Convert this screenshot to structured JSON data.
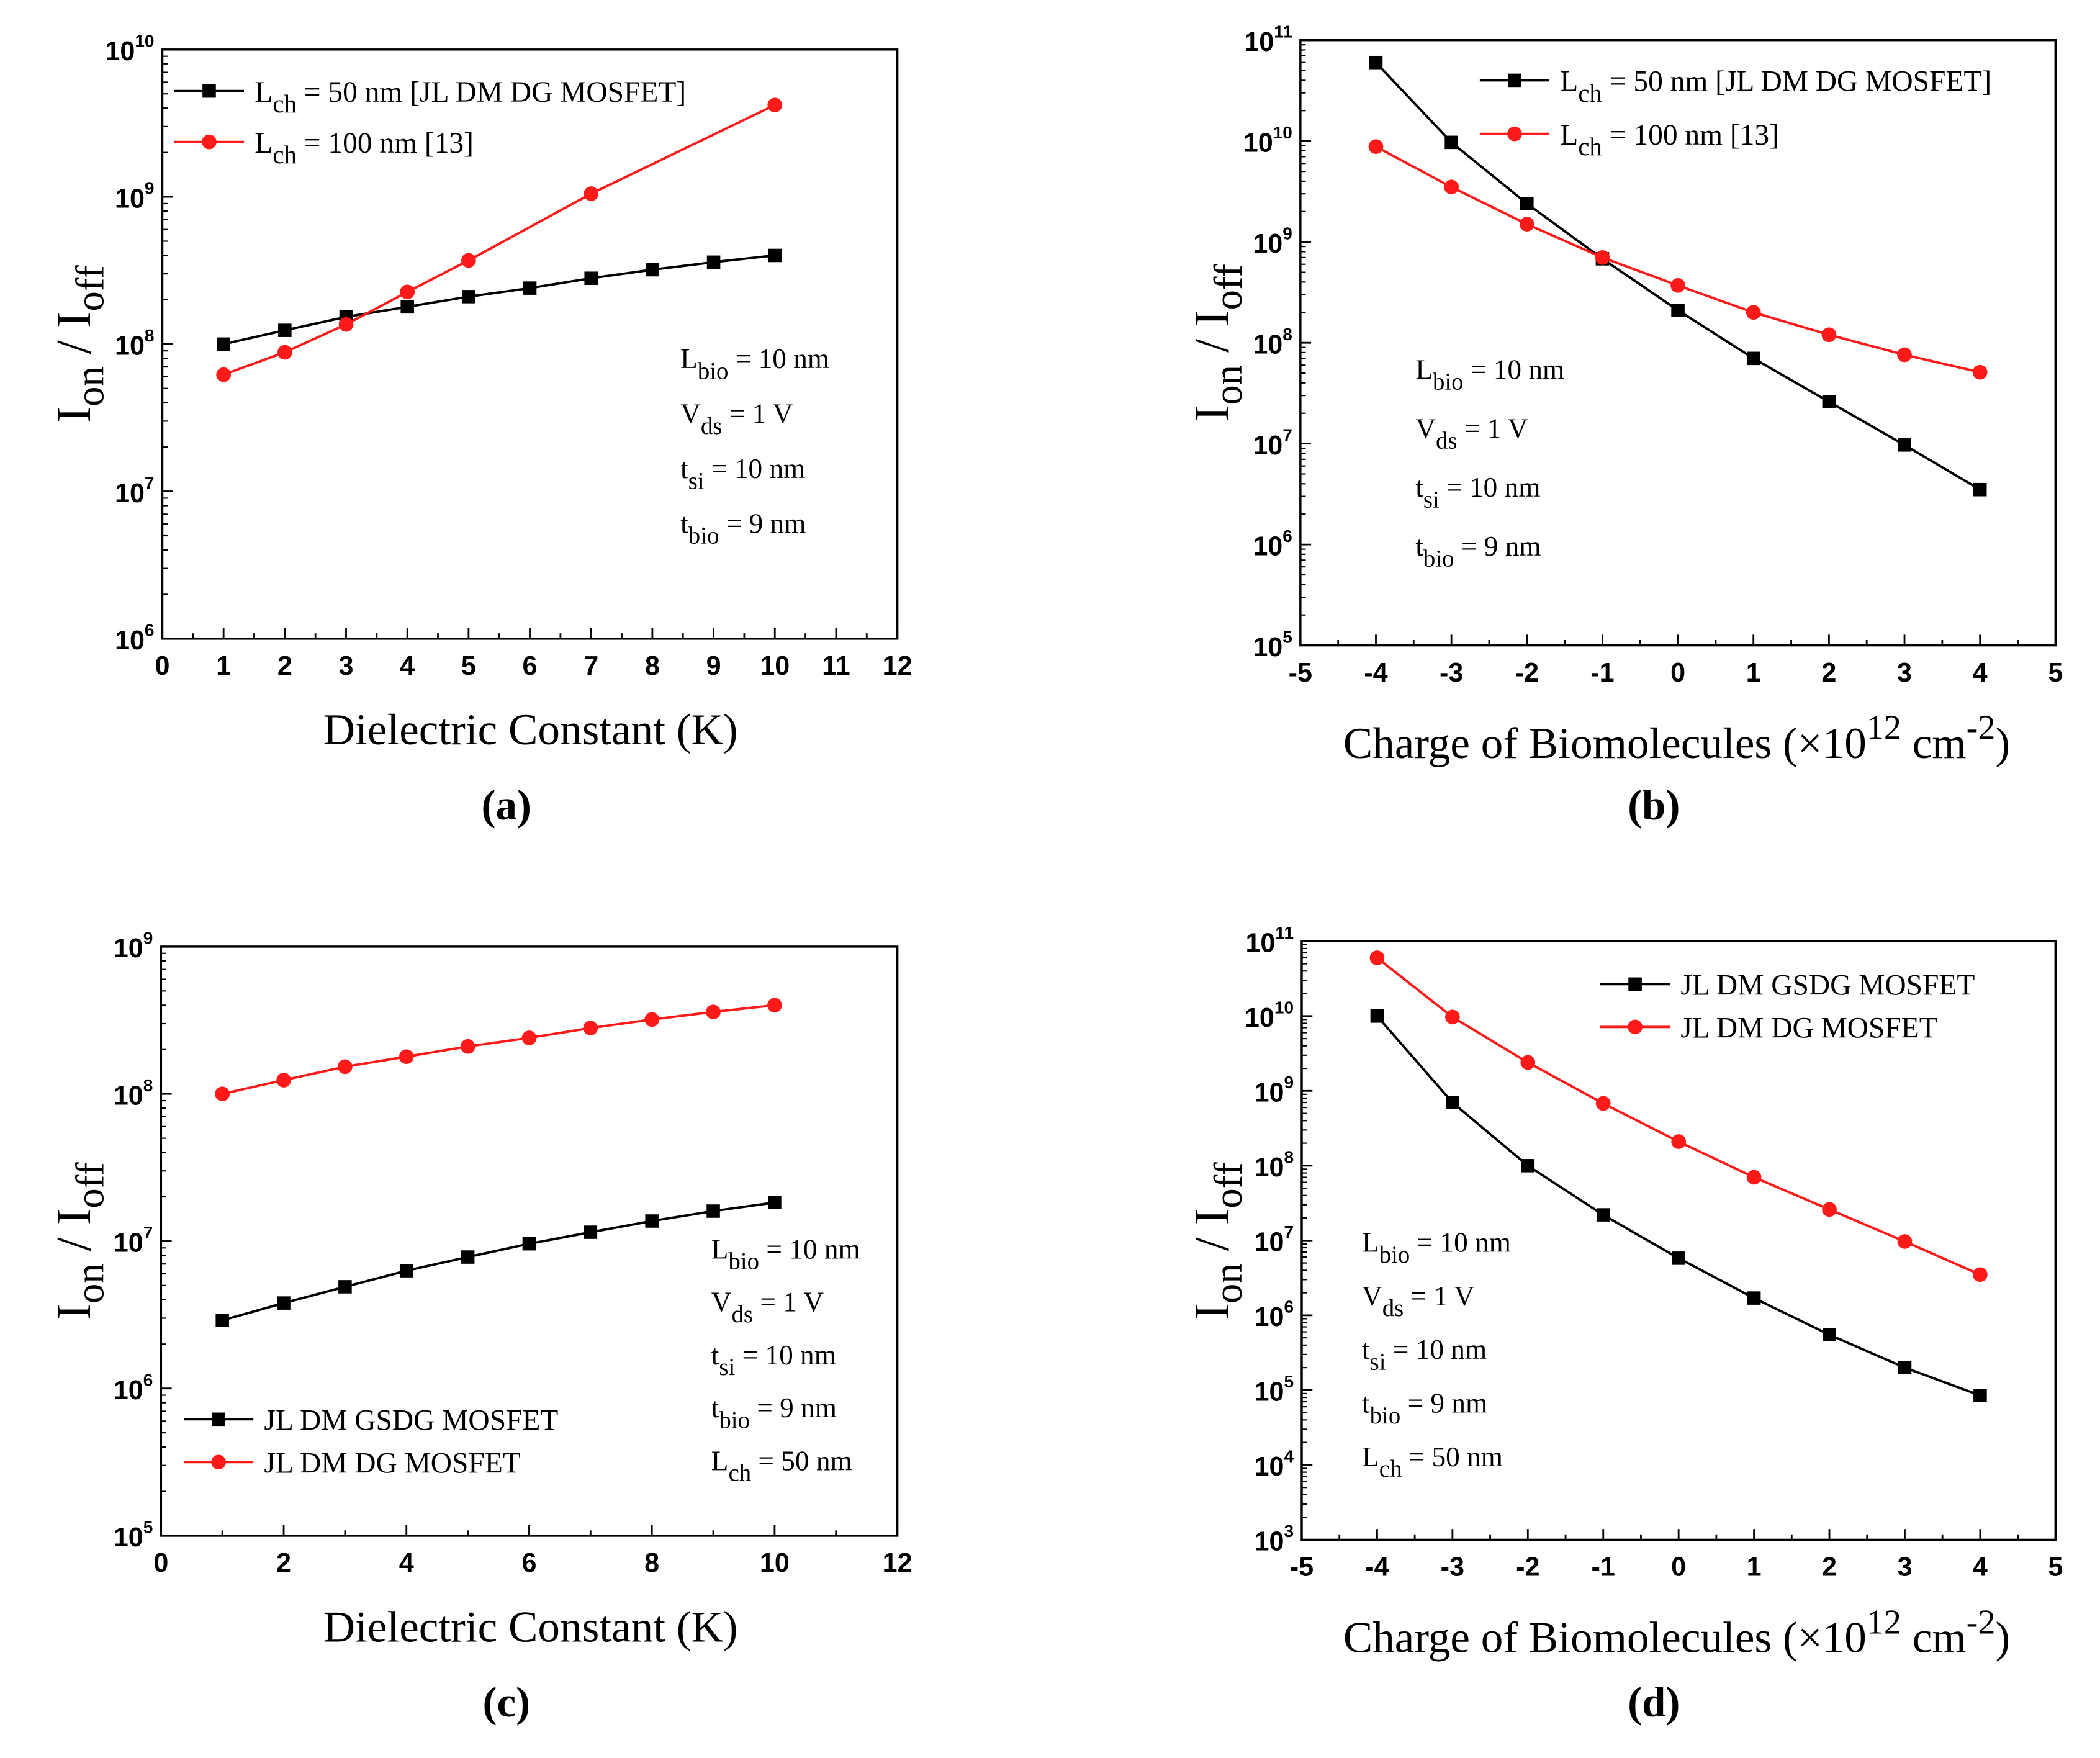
{
  "colors": {
    "black_series": "#000000",
    "red_series": "#ff1a1a",
    "axis": "#000000"
  },
  "chart_data": [
    {
      "panel_label": "(a)",
      "type": "line",
      "yscale": "log",
      "xlim": [
        0,
        12
      ],
      "ylim": [
        1000000.0,
        10000000000.0
      ],
      "xticks": [
        0,
        1,
        2,
        3,
        4,
        5,
        6,
        7,
        8,
        9,
        10,
        11,
        12
      ],
      "yticks_exp": [
        6,
        7,
        8,
        9,
        10
      ],
      "xlabel": [
        {
          "t": "Dielectric Constant (K)"
        }
      ],
      "ylabel": {
        "main1": "I",
        "sub1": "on",
        "mid": " / I",
        "sub2": "off"
      },
      "legend_placement": "top-left",
      "series": [
        {
          "name": {
            "main": "L",
            "sub": "ch",
            "rest": " = 50 nm [JL DM DG MOSFET]"
          },
          "color": "#000000",
          "marker": "square",
          "x": [
            1,
            2,
            3,
            4,
            5,
            6,
            7,
            8,
            9,
            10
          ],
          "y": [
            100000000.0,
            124000000.0,
            153000000.0,
            179000000.0,
            210000000.0,
            240000000.0,
            280000000.0,
            320000000.0,
            360000000.0,
            400000000.0
          ]
        },
        {
          "name": {
            "main": "L",
            "sub": "ch",
            "rest": " = 100 nm [13]"
          },
          "color": "#ff1a1a",
          "marker": "circle",
          "x": [
            1,
            2,
            3,
            4,
            5,
            7,
            10
          ],
          "y": [
            62000000.0,
            88000000.0,
            136000000.0,
            226000000.0,
            370000000.0,
            1050000000.0,
            4200000000.0
          ]
        }
      ],
      "annotations": [
        {
          "main": "L",
          "sub": "bio",
          "rest": " = 10 nm"
        },
        {
          "main": "V",
          "sub": "ds",
          "rest": " = 1 V"
        },
        {
          "main": "t",
          "sub": "si",
          "rest": " = 10 nm"
        },
        {
          "main": "t",
          "sub": "bio",
          "rest": " = 9 nm"
        }
      ]
    },
    {
      "panel_label": "(b)",
      "type": "line",
      "yscale": "log",
      "xlim": [
        -5,
        5
      ],
      "ylim": [
        100000.0,
        100000000000.0
      ],
      "xticks": [
        -5,
        -4,
        -3,
        -2,
        -1,
        0,
        1,
        2,
        3,
        4,
        5
      ],
      "yticks_exp": [
        5,
        6,
        7,
        8,
        9,
        10,
        11
      ],
      "xlabel": [
        {
          "t": "Charge of Biomolecules (×10"
        },
        {
          "t": "12",
          "sup": true
        },
        {
          "t": " cm"
        },
        {
          "t": "-2",
          "sup": true
        },
        {
          "t": ")"
        }
      ],
      "ylabel": {
        "main1": "I",
        "sub1": "on",
        "mid": " / I",
        "sub2": "off"
      },
      "legend_placement": "top-right",
      "series": [
        {
          "name": {
            "main": "L",
            "sub": "ch",
            "rest": " = 50 nm [JL DM DG MOSFET]"
          },
          "color": "#000000",
          "marker": "square",
          "x": [
            -4,
            -3,
            -2,
            -1,
            0,
            1,
            2,
            3,
            4
          ],
          "y": [
            60000000000.0,
            9700000000.0,
            2400000000.0,
            680000000.0,
            210000000.0,
            70000000.0,
            26000000.0,
            9700000.0,
            3500000.0
          ]
        },
        {
          "name": {
            "main": "L",
            "sub": "ch",
            "rest": " = 100 nm [13]"
          },
          "color": "#ff1a1a",
          "marker": "circle",
          "x": [
            -4,
            -3,
            -2,
            -1,
            0,
            1,
            2,
            3,
            4
          ],
          "y": [
            8800000000.0,
            3500000000.0,
            1500000000.0,
            700000000.0,
            370000000.0,
            200000000.0,
            120000000.0,
            76000000.0,
            51000000.0
          ]
        }
      ],
      "annotations": [
        {
          "main": "L",
          "sub": "bio",
          "rest": " = 10 nm"
        },
        {
          "main": "V",
          "sub": "ds",
          "rest": " = 1 V"
        },
        {
          "main": "t",
          "sub": "si",
          "rest": " = 10 nm"
        },
        {
          "main": "t",
          "sub": "bio",
          "rest": " = 9 nm"
        }
      ]
    },
    {
      "panel_label": "(c)",
      "type": "line",
      "yscale": "log",
      "xlim": [
        0,
        12
      ],
      "ylim": [
        100000.0,
        1000000000.0
      ],
      "xticks": [
        0,
        2,
        4,
        6,
        8,
        10,
        12
      ],
      "yticks_exp": [
        5,
        6,
        7,
        8,
        9
      ],
      "xlabel": [
        {
          "t": "Dielectric Constant (K)"
        }
      ],
      "ylabel": {
        "main1": "I",
        "sub1": "on",
        "mid": " / I",
        "sub2": "off"
      },
      "legend_placement": "bottom-left",
      "series": [
        {
          "name": {
            "main": "",
            "sub": "",
            "rest": "JL DM GSDG MOSFET"
          },
          "color": "#000000",
          "marker": "square",
          "x": [
            1,
            2,
            3,
            4,
            5,
            6,
            7,
            8,
            9,
            10
          ],
          "y": [
            2900000.0,
            3800000.0,
            4900000.0,
            6300000.0,
            7800000.0,
            9600000.0,
            11500000.0,
            13700000.0,
            16000000.0,
            18300000.0
          ]
        },
        {
          "name": {
            "main": "",
            "sub": "",
            "rest": "JL DM DG MOSFET"
          },
          "color": "#ff1a1a",
          "marker": "circle",
          "x": [
            1,
            2,
            3,
            4,
            5,
            6,
            7,
            8,
            9,
            10
          ],
          "y": [
            100000000.0,
            124000000.0,
            153000000.0,
            179000000.0,
            210000000.0,
            240000000.0,
            280000000.0,
            320000000.0,
            360000000.0,
            400000000.0
          ]
        }
      ],
      "annotations": [
        {
          "main": "L",
          "sub": "bio",
          "rest": " = 10 nm"
        },
        {
          "main": "V",
          "sub": "ds",
          "rest": " = 1 V"
        },
        {
          "main": "t",
          "sub": "si",
          "rest": " = 10 nm"
        },
        {
          "main": "t",
          "sub": "bio",
          "rest": " = 9 nm"
        },
        {
          "main": "L",
          "sub": "ch",
          "rest": " = 50 nm"
        }
      ]
    },
    {
      "panel_label": "(d)",
      "type": "line",
      "yscale": "log",
      "xlim": [
        -5,
        5
      ],
      "ylim": [
        1000.0,
        100000000000.0
      ],
      "xticks": [
        -5,
        -4,
        -3,
        -2,
        -1,
        0,
        1,
        2,
        3,
        4,
        5
      ],
      "yticks_exp": [
        3,
        4,
        5,
        6,
        7,
        8,
        9,
        10,
        11
      ],
      "xlabel": [
        {
          "t": "Charge of Biomolecules (×10"
        },
        {
          "t": "12",
          "sup": true
        },
        {
          "t": " cm"
        },
        {
          "t": "-2",
          "sup": true
        },
        {
          "t": ")"
        }
      ],
      "ylabel": {
        "main1": "I",
        "sub1": "on",
        "mid": " / I",
        "sub2": "off"
      },
      "legend_placement": "top-right",
      "series": [
        {
          "name": {
            "main": "",
            "sub": "",
            "rest": "JL DM GSDG MOSFET"
          },
          "color": "#000000",
          "marker": "square",
          "x": [
            -4,
            -3,
            -2,
            -1,
            0,
            1,
            2,
            3,
            4
          ],
          "y": [
            10000000000.0,
            700000000.0,
            100000000.0,
            22000000.0,
            5800000.0,
            1700000.0,
            550000.0,
            200000.0,
            85000.0
          ]
        },
        {
          "name": {
            "main": "",
            "sub": "",
            "rest": "JL DM DG MOSFET"
          },
          "color": "#ff1a1a",
          "marker": "circle",
          "x": [
            -4,
            -3,
            -2,
            -1,
            0,
            1,
            2,
            3,
            4
          ],
          "y": [
            60000000000.0,
            9700000000.0,
            2400000000.0,
            680000000.0,
            210000000.0,
            70000000.0,
            26000000.0,
            9700000.0,
            3500000.0
          ]
        }
      ],
      "annotations": [
        {
          "main": "L",
          "sub": "bio",
          "rest": " = 10 nm"
        },
        {
          "main": "V",
          "sub": "ds",
          "rest": " = 1 V"
        },
        {
          "main": "t",
          "sub": "si",
          "rest": " = 10 nm"
        },
        {
          "main": "t",
          "sub": "bio",
          "rest": " = 9 nm"
        },
        {
          "main": "L",
          "sub": "ch",
          "rest": " = 50 nm"
        }
      ]
    }
  ]
}
